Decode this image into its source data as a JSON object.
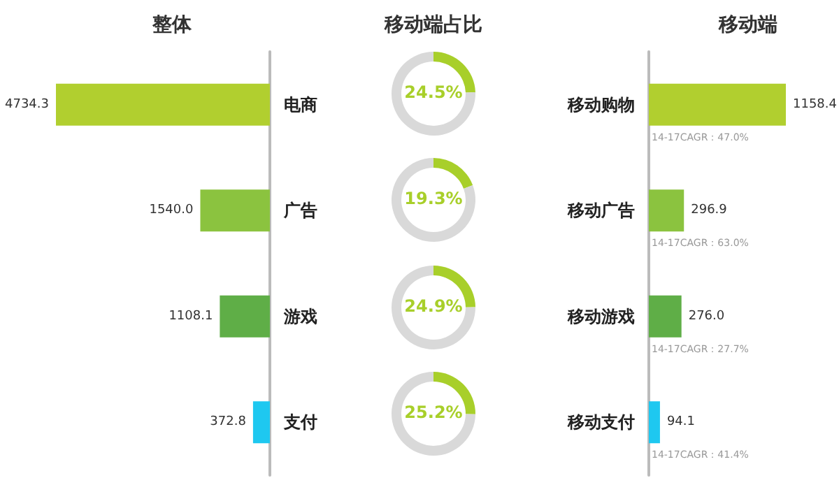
{
  "chart_data": [
    {
      "type": "bar",
      "title": "整体",
      "orientation": "horizontal",
      "categories": [
        "电商",
        "广告",
        "游戏",
        "支付"
      ],
      "values": [
        4734.3,
        1540.0,
        1108.1,
        372.8
      ],
      "value_labels": [
        "4734.3",
        "1540.0",
        "1108.1",
        "372.8"
      ],
      "colors": [
        "#b1cf2f",
        "#8bc33f",
        "#5fae47",
        "#1ec8f0"
      ]
    },
    {
      "type": "donut",
      "title": "移动端占比",
      "categories": [
        null,
        null
      ],
      "values": [
        24.5,
        75.5
      ],
      "value_labels": [
        "24.5%",
        null
      ],
      "colors": [
        "#a8cf2a",
        "#d9d9d9"
      ]
    },
    {
      "type": "donut",
      "categories": [
        null,
        null
      ],
      "values": [
        19.3,
        80.7
      ],
      "value_labels": [
        "19.3%",
        null
      ],
      "colors": [
        "#a8cf2a",
        "#d9d9d9"
      ]
    },
    {
      "type": "donut",
      "categories": [
        null,
        null
      ],
      "values": [
        24.9,
        75.1
      ],
      "value_labels": [
        "24.9%",
        null
      ],
      "colors": [
        "#a8cf2a",
        "#d9d9d9"
      ]
    },
    {
      "type": "donut",
      "categories": [
        null,
        null
      ],
      "values": [
        25.2,
        74.8
      ],
      "value_labels": [
        "25.2%",
        null
      ],
      "colors": [
        "#a8cf2a",
        "#d9d9d9"
      ]
    },
    {
      "type": "bar",
      "title": "移动端",
      "orientation": "horizontal",
      "categories": [
        "移动购物",
        "移动广告",
        "移动游戏",
        "移动支付"
      ],
      "values": [
        1158.4,
        296.9,
        276.0,
        94.1
      ],
      "value_labels": [
        "1158.4",
        "296.9",
        "276.0",
        "94.1"
      ],
      "colors": [
        "#b1cf2f",
        "#8bc33f",
        "#5fae47",
        "#1ec8f0"
      ],
      "annotations": [
        "14-17CAGR：47.0%",
        "14-17CAGR：63.0%",
        "14-17CAGR：27.7%",
        "14-17CAGR：41.4%"
      ]
    }
  ]
}
